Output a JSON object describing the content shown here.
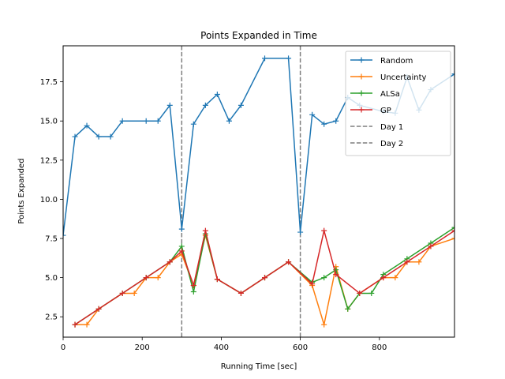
{
  "chart_data": {
    "type": "line",
    "title": "Points Expanded in Time",
    "xlabel": "Running Time [sec]",
    "ylabel": "Points Expanded",
    "xlim": [
      0,
      990
    ],
    "ylim": [
      1.2,
      19.8
    ],
    "xticks": [
      0,
      200,
      400,
      600,
      800
    ],
    "xtick_labels": [
      "0",
      "200",
      "400",
      "600",
      "800"
    ],
    "yticks": [
      2.5,
      5.0,
      7.5,
      10.0,
      12.5,
      15.0,
      17.5
    ],
    "ytick_labels": [
      "2.5",
      "5.0",
      "7.5",
      "10.0",
      "12.5",
      "15.0",
      "17.5"
    ],
    "grid": false,
    "legend_position": "top-right",
    "series": [
      {
        "name": "Random",
        "color": "#1f77b4",
        "marker": "+",
        "points": [
          [
            0,
            7.7
          ],
          [
            30,
            14
          ],
          [
            60,
            14.7
          ],
          [
            90,
            14
          ],
          [
            120,
            14
          ],
          [
            150,
            15
          ],
          [
            210,
            15
          ],
          [
            240,
            15
          ],
          [
            270,
            16
          ],
          [
            300,
            8.1
          ],
          [
            330,
            14.8
          ],
          [
            360,
            16
          ],
          [
            390,
            16.7
          ],
          [
            420,
            15
          ],
          [
            450,
            16
          ],
          [
            510,
            19
          ],
          [
            570,
            19
          ],
          [
            600,
            7.9
          ],
          [
            630,
            15.4
          ],
          [
            660,
            14.8
          ],
          [
            690,
            15
          ],
          [
            720,
            16.5
          ],
          [
            750,
            16
          ],
          [
            810,
            15.6
          ],
          [
            840,
            15.5
          ],
          [
            870,
            17.8
          ],
          [
            900,
            15.7
          ],
          [
            930,
            17
          ],
          [
            990,
            18
          ]
        ]
      },
      {
        "name": "Uncertainty",
        "color": "#ff7f0e",
        "marker": "+",
        "points": [
          [
            30,
            2
          ],
          [
            60,
            2
          ],
          [
            90,
            3
          ],
          [
            150,
            4
          ],
          [
            180,
            4
          ],
          [
            210,
            5
          ],
          [
            240,
            5
          ],
          [
            270,
            6
          ],
          [
            300,
            6.5
          ],
          [
            330,
            4.5
          ],
          [
            360,
            7.7
          ],
          [
            390,
            4.9
          ],
          [
            450,
            4
          ],
          [
            510,
            5
          ],
          [
            570,
            6
          ],
          [
            630,
            4.5
          ],
          [
            660,
            2
          ],
          [
            690,
            5.7
          ],
          [
            720,
            3
          ],
          [
            750,
            4
          ],
          [
            810,
            5
          ],
          [
            840,
            5
          ],
          [
            870,
            6
          ],
          [
            900,
            6
          ],
          [
            930,
            7
          ],
          [
            990,
            7.5
          ]
        ]
      },
      {
        "name": "ALSa",
        "color": "#2ca02c",
        "marker": "+",
        "points": [
          [
            30,
            2
          ],
          [
            90,
            3
          ],
          [
            150,
            4
          ],
          [
            210,
            5
          ],
          [
            270,
            6
          ],
          [
            300,
            7
          ],
          [
            330,
            4.1
          ],
          [
            360,
            7.8
          ],
          [
            390,
            4.9
          ],
          [
            450,
            4
          ],
          [
            510,
            5
          ],
          [
            570,
            6
          ],
          [
            630,
            4.7
          ],
          [
            660,
            5
          ],
          [
            690,
            5.5
          ],
          [
            720,
            3
          ],
          [
            750,
            4
          ],
          [
            780,
            4
          ],
          [
            810,
            5.2
          ],
          [
            870,
            6.2
          ],
          [
            930,
            7.2
          ],
          [
            990,
            8.2
          ]
        ]
      },
      {
        "name": "GP",
        "color": "#d62728",
        "marker": "+",
        "points": [
          [
            30,
            2
          ],
          [
            90,
            3
          ],
          [
            150,
            4
          ],
          [
            210,
            5
          ],
          [
            270,
            6
          ],
          [
            300,
            6.7
          ],
          [
            330,
            4.5
          ],
          [
            360,
            8
          ],
          [
            390,
            4.9
          ],
          [
            450,
            4
          ],
          [
            510,
            5
          ],
          [
            570,
            6
          ],
          [
            630,
            4.6
          ],
          [
            660,
            8
          ],
          [
            690,
            5.2
          ],
          [
            750,
            4
          ],
          [
            810,
            5
          ],
          [
            870,
            6
          ],
          [
            930,
            7
          ],
          [
            990,
            8
          ]
        ]
      }
    ],
    "vlines": [
      {
        "name": "Day 1",
        "x": 300,
        "color": "#7f7f7f",
        "style": "dashed"
      },
      {
        "name": "Day 2",
        "x": 600,
        "color": "#7f7f7f",
        "style": "dashed"
      }
    ]
  }
}
